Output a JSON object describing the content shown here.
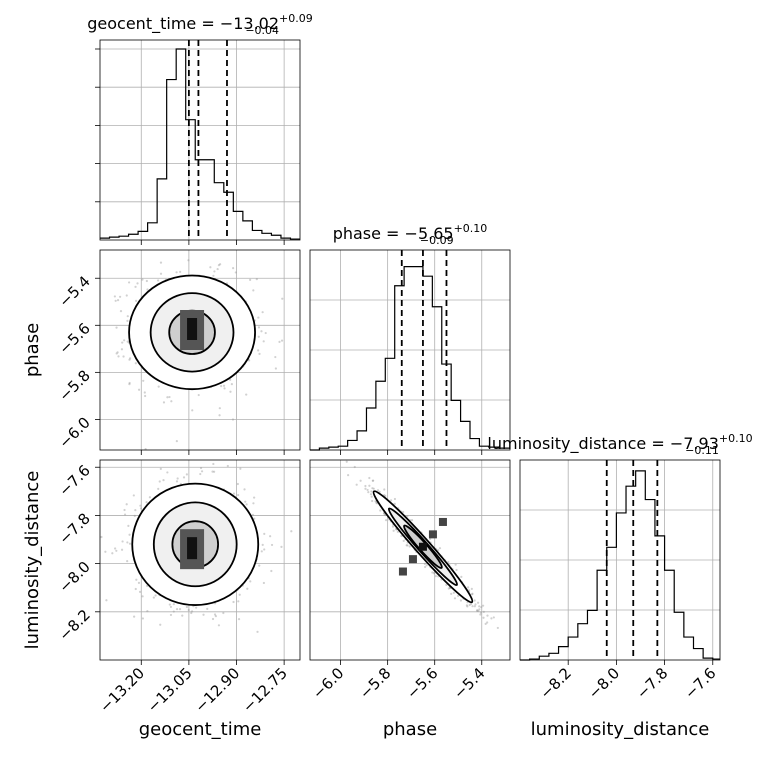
{
  "chart_data": {
    "type": "corner",
    "parameters": [
      "geocent_time",
      "phase",
      "luminosity_distance"
    ],
    "panels": [
      {
        "kind": "histogram",
        "parameter": "geocent_time",
        "title_main": "geocent_time = −13.02",
        "title_sup": "+0.09",
        "title_sub": "−0.04",
        "xlim": [
          -13.33,
          -12.7
        ],
        "bin_edges": [
          -13.33,
          -13.3,
          -13.27,
          -13.24,
          -13.21,
          -13.18,
          -13.15,
          -13.12,
          -13.09,
          -13.06,
          -13.03,
          -13.0,
          -12.97,
          -12.94,
          -12.91,
          -12.88,
          -12.85,
          -12.82,
          -12.79,
          -12.76,
          -12.73,
          -12.7
        ],
        "counts": [
          0.01,
          0.015,
          0.02,
          0.03,
          0.045,
          0.09,
          0.32,
          0.84,
          1.0,
          0.63,
          0.42,
          0.42,
          0.3,
          0.25,
          0.15,
          0.1,
          0.05,
          0.035,
          0.025,
          0.01,
          0.005
        ],
        "quantile_lines": [
          -13.05,
          -13.02,
          -12.93
        ]
      },
      {
        "kind": "histogram",
        "parameter": "phase",
        "title_main": "phase = −5.65",
        "title_sup": "+0.10",
        "title_sub": "−0.09",
        "xlim": [
          -6.13,
          -5.28
        ],
        "bin_edges": [
          -6.13,
          -6.09,
          -6.05,
          -6.01,
          -5.97,
          -5.93,
          -5.89,
          -5.85,
          -5.81,
          -5.77,
          -5.73,
          -5.69,
          -5.65,
          -5.61,
          -5.57,
          -5.53,
          -5.49,
          -5.45,
          -5.41,
          -5.37,
          -5.33,
          -5.28
        ],
        "counts": [
          0,
          0.01,
          0.015,
          0.02,
          0.05,
          0.1,
          0.22,
          0.36,
          0.48,
          0.86,
          0.96,
          0.96,
          0.91,
          0.75,
          0.45,
          0.26,
          0.15,
          0.06,
          0.02,
          0.015,
          0.01
        ],
        "quantile_lines": [
          -5.74,
          -5.65,
          -5.55
        ]
      },
      {
        "kind": "histogram",
        "parameter": "luminosity_distance",
        "title_main": "luminosity_distance = −7.93",
        "title_sup": "+0.10",
        "title_sub": "−0.11",
        "xlim": [
          -8.4,
          -7.57
        ],
        "bin_edges": [
          -8.4,
          -8.36,
          -8.32,
          -8.28,
          -8.24,
          -8.2,
          -8.16,
          -8.12,
          -8.08,
          -8.04,
          -8.0,
          -7.96,
          -7.92,
          -7.88,
          -7.84,
          -7.8,
          -7.76,
          -7.72,
          -7.68,
          -7.64,
          -7.6,
          -7.57
        ],
        "counts": [
          0,
          0.005,
          0.02,
          0.035,
          0.07,
          0.12,
          0.19,
          0.26,
          0.47,
          0.59,
          0.77,
          0.91,
          0.99,
          0.84,
          0.65,
          0.47,
          0.25,
          0.12,
          0.06,
          0.01,
          0.005
        ],
        "quantile_lines": [
          -8.04,
          -7.93,
          -7.83
        ]
      },
      {
        "kind": "contour2d",
        "x_param": "geocent_time",
        "y_param": "phase",
        "xlim": [
          -13.33,
          -12.7
        ],
        "ylim": [
          -6.13,
          -5.28
        ],
        "center": [
          -13.04,
          -5.63
        ],
        "peak": [
          -13.04,
          -5.62
        ],
        "spread": [
          0.09,
          0.115
        ],
        "correlation": -0.05
      },
      {
        "kind": "contour2d",
        "x_param": "geocent_time",
        "y_param": "luminosity_distance",
        "xlim": [
          -13.33,
          -12.7
        ],
        "ylim": [
          -8.4,
          -7.57
        ],
        "center": [
          -13.03,
          -7.92
        ],
        "peak": [
          -13.04,
          -7.94
        ],
        "spread": [
          0.09,
          0.12
        ],
        "correlation": 0.0
      },
      {
        "kind": "contour2d",
        "x_param": "phase",
        "y_param": "luminosity_distance",
        "xlim": [
          -6.13,
          -5.28
        ],
        "ylim": [
          -8.4,
          -7.57
        ],
        "center": [
          -5.65,
          -7.93
        ],
        "peak": [
          -5.66,
          -7.94
        ],
        "spread": [
          0.1,
          0.11
        ],
        "correlation": -0.975
      }
    ],
    "axes": {
      "geocent_time": {
        "xlabel": "geocent_time",
        "ticks": [
          -13.2,
          -13.05,
          -12.9,
          -12.75
        ],
        "tick_labels": [
          "−13.20",
          "−13.05",
          "−12.90",
          "−12.75"
        ]
      },
      "phase": {
        "xlabel": "phase",
        "ylabel": "phase",
        "ticks": [
          -6.0,
          -5.8,
          -5.6,
          -5.4
        ],
        "tick_labels": [
          "−6.0",
          "−5.8",
          "−5.6",
          "−5.4"
        ]
      },
      "luminosity_distance": {
        "xlabel": "luminosity_distance",
        "ylabel": "luminosity_distance",
        "ticks": [
          -8.2,
          -8.0,
          -7.8,
          -7.6
        ],
        "tick_labels": [
          "−8.2",
          "−8.0",
          "−7.8",
          "−7.6"
        ]
      }
    },
    "hist1_yticks": [
      0.2,
      0.4,
      0.6,
      0.8,
      1.0
    ],
    "contour_levels": [
      "0.39",
      "0.86",
      "0.99"
    ],
    "grid": true,
    "colors": {
      "line": "#000000",
      "grid": "#b0b0b0",
      "points": "#9a9a9a"
    }
  }
}
